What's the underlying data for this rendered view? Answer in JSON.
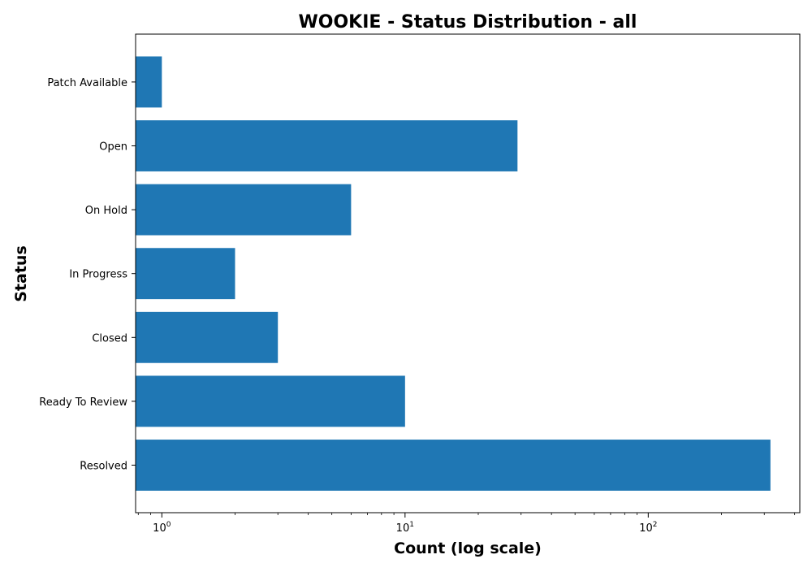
{
  "chart_data": {
    "type": "bar",
    "orientation": "horizontal",
    "title": "WOOKIE - Status Distribution - all",
    "xlabel": "Count (log scale)",
    "ylabel": "Status",
    "xscale": "log",
    "xlim": [
      0.78,
      420
    ],
    "categories": [
      "Resolved",
      "Ready To Review",
      "Closed",
      "In Progress",
      "On Hold",
      "Open",
      "Patch Available"
    ],
    "values": [
      318,
      10,
      3,
      2,
      6,
      29,
      1
    ],
    "x_ticks": [
      {
        "value": 1,
        "base": "10",
        "exp": "0"
      },
      {
        "value": 10,
        "base": "10",
        "exp": "1"
      },
      {
        "value": 100,
        "base": "10",
        "exp": "2"
      }
    ],
    "bar_color": "#1f77b4",
    "grid": false
  }
}
